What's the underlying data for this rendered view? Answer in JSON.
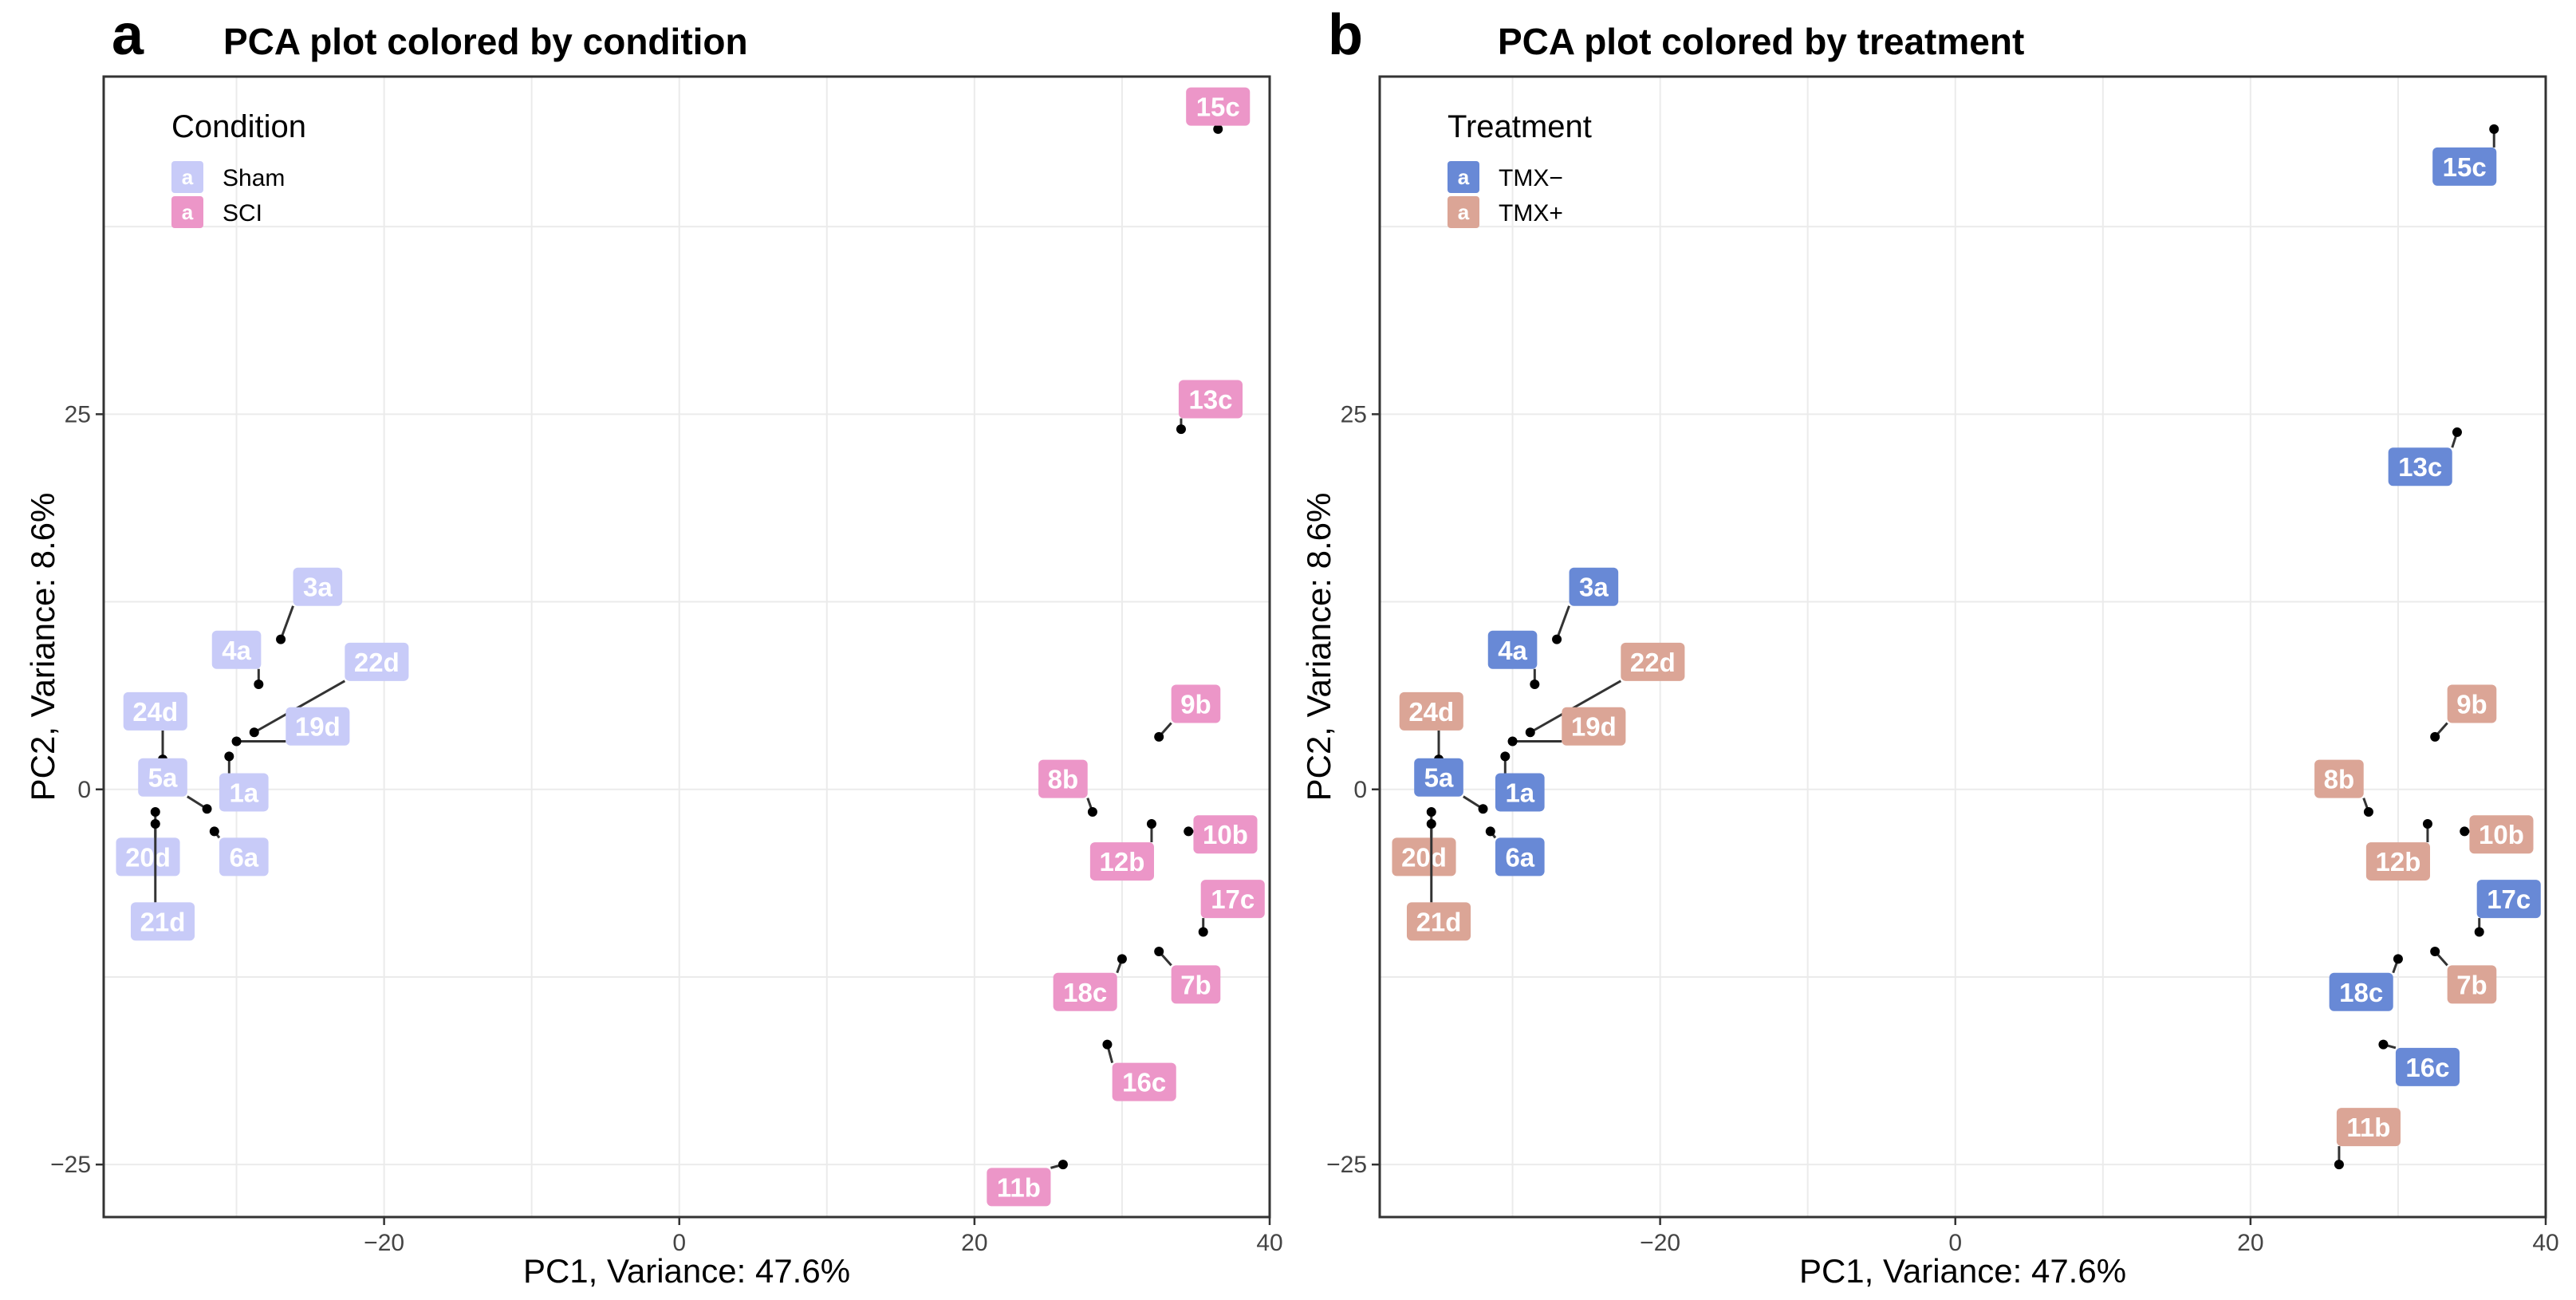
{
  "colors": {
    "sham": "#c8cbf8",
    "sci": "#ec96c8",
    "tmx_minus": "#6889d6",
    "tmx_plus": "#dba596",
    "point": "#000000"
  },
  "chart_data": [
    {
      "type": "scatter",
      "panel_letter": "a",
      "title": "PCA plot colored by condition",
      "xlabel": "PC1, Variance: 47.6%",
      "ylabel": "PC2, Variance: 8.6%",
      "xlim": [
        -39,
        40
      ],
      "ylim": [
        -28.5,
        47.5
      ],
      "xticks": [
        -20,
        0,
        20,
        40
      ],
      "xtick_labels": [
        "−20",
        "0",
        "20",
        "40"
      ],
      "yticks": [
        -25,
        0,
        25
      ],
      "ytick_labels": [
        "−25",
        "0",
        "25"
      ],
      "grid": true,
      "legend": {
        "title": "Condition",
        "position": "top-left",
        "key_glyph": "a",
        "entries": [
          {
            "label": "Sham",
            "color": "#c8cbf8"
          },
          {
            "label": "SCI",
            "color": "#ec96c8"
          }
        ]
      },
      "points": [
        {
          "label": "15c",
          "x": 36.5,
          "y": 44.0,
          "lx": 36.5,
          "ly": 45.5,
          "group": "SCI"
        },
        {
          "label": "13c",
          "x": 34.0,
          "y": 24.0,
          "lx": 36.0,
          "ly": 26.0,
          "group": "SCI"
        },
        {
          "label": "3a",
          "x": -27.0,
          "y": 10.0,
          "lx": -24.5,
          "ly": 13.5,
          "group": "Sham"
        },
        {
          "label": "4a",
          "x": -28.5,
          "y": 7.0,
          "lx": -30.0,
          "ly": 9.3,
          "group": "Sham"
        },
        {
          "label": "22d",
          "x": -28.8,
          "y": 3.8,
          "lx": -20.5,
          "ly": 8.5,
          "group": "Sham"
        },
        {
          "label": "19d",
          "x": -30.0,
          "y": 3.2,
          "lx": -24.5,
          "ly": 4.2,
          "group": "Sham"
        },
        {
          "label": "24d",
          "x": -35.0,
          "y": 2.0,
          "lx": -35.5,
          "ly": 5.2,
          "group": "Sham"
        },
        {
          "label": "1a",
          "x": -30.5,
          "y": 2.2,
          "lx": -29.5,
          "ly": -0.2,
          "group": "Sham"
        },
        {
          "label": "5a",
          "x": -32.0,
          "y": -1.3,
          "lx": -35.0,
          "ly": 0.8,
          "group": "Sham"
        },
        {
          "label": "6a",
          "x": -31.5,
          "y": -2.8,
          "lx": -29.5,
          "ly": -4.5,
          "group": "Sham"
        },
        {
          "label": "20d",
          "x": -35.5,
          "y": -1.5,
          "lx": -36.0,
          "ly": -4.5,
          "group": "Sham"
        },
        {
          "label": "21d",
          "x": -35.5,
          "y": -2.3,
          "lx": -35.0,
          "ly": -8.8,
          "group": "Sham"
        },
        {
          "label": "9b",
          "x": 32.5,
          "y": 3.5,
          "lx": 35.0,
          "ly": 5.7,
          "group": "SCI"
        },
        {
          "label": "8b",
          "x": 28.0,
          "y": -1.5,
          "lx": 26.0,
          "ly": 0.7,
          "group": "SCI"
        },
        {
          "label": "10b",
          "x": 34.5,
          "y": -2.8,
          "lx": 37.0,
          "ly": -3.0,
          "group": "SCI"
        },
        {
          "label": "12b",
          "x": 32.0,
          "y": -2.3,
          "lx": 30.0,
          "ly": -4.8,
          "group": "SCI"
        },
        {
          "label": "17c",
          "x": 35.5,
          "y": -9.5,
          "lx": 37.5,
          "ly": -7.3,
          "group": "SCI"
        },
        {
          "label": "7b",
          "x": 32.5,
          "y": -10.8,
          "lx": 35.0,
          "ly": -13.0,
          "group": "SCI"
        },
        {
          "label": "18c",
          "x": 30.0,
          "y": -11.3,
          "lx": 27.5,
          "ly": -13.5,
          "group": "SCI"
        },
        {
          "label": "16c",
          "x": 29.0,
          "y": -17.0,
          "lx": 31.5,
          "ly": -19.5,
          "group": "SCI"
        },
        {
          "label": "11b",
          "x": 26.0,
          "y": -25.0,
          "lx": 23.0,
          "ly": -26.5,
          "group": "SCI"
        }
      ]
    },
    {
      "type": "scatter",
      "panel_letter": "b",
      "title": "PCA plot colored by treatment",
      "xlabel": "PC1, Variance: 47.6%",
      "ylabel": "PC2, Variance: 8.6%",
      "xlim": [
        -39,
        40
      ],
      "ylim": [
        -28.5,
        47.5
      ],
      "xticks": [
        -20,
        0,
        20,
        40
      ],
      "xtick_labels": [
        "−20",
        "0",
        "20",
        "40"
      ],
      "yticks": [
        -25,
        0,
        25
      ],
      "ytick_labels": [
        "−25",
        "0",
        "25"
      ],
      "grid": true,
      "legend": {
        "title": "Treatment",
        "position": "top-left",
        "key_glyph": "a",
        "entries": [
          {
            "label": "TMX−",
            "color": "#6889d6"
          },
          {
            "label": "TMX+",
            "color": "#dba596"
          }
        ]
      },
      "points": [
        {
          "label": "15c",
          "x": 36.5,
          "y": 44.0,
          "lx": 34.5,
          "ly": 41.5,
          "group": "TMX−"
        },
        {
          "label": "13c",
          "x": 34.0,
          "y": 23.8,
          "lx": 31.5,
          "ly": 21.5,
          "group": "TMX−"
        },
        {
          "label": "3a",
          "x": -27.0,
          "y": 10.0,
          "lx": -24.5,
          "ly": 13.5,
          "group": "TMX−"
        },
        {
          "label": "4a",
          "x": -28.5,
          "y": 7.0,
          "lx": -30.0,
          "ly": 9.3,
          "group": "TMX−"
        },
        {
          "label": "22d",
          "x": -28.8,
          "y": 3.8,
          "lx": -20.5,
          "ly": 8.5,
          "group": "TMX+"
        },
        {
          "label": "19d",
          "x": -30.0,
          "y": 3.2,
          "lx": -24.5,
          "ly": 4.2,
          "group": "TMX+"
        },
        {
          "label": "24d",
          "x": -35.0,
          "y": 2.0,
          "lx": -35.5,
          "ly": 5.2,
          "group": "TMX+"
        },
        {
          "label": "1a",
          "x": -30.5,
          "y": 2.2,
          "lx": -29.5,
          "ly": -0.2,
          "group": "TMX−"
        },
        {
          "label": "5a",
          "x": -32.0,
          "y": -1.3,
          "lx": -35.0,
          "ly": 0.8,
          "group": "TMX−"
        },
        {
          "label": "6a",
          "x": -31.5,
          "y": -2.8,
          "lx": -29.5,
          "ly": -4.5,
          "group": "TMX−"
        },
        {
          "label": "20d",
          "x": -35.5,
          "y": -1.5,
          "lx": -36.0,
          "ly": -4.5,
          "group": "TMX+"
        },
        {
          "label": "21d",
          "x": -35.5,
          "y": -2.3,
          "lx": -35.0,
          "ly": -8.8,
          "group": "TMX+"
        },
        {
          "label": "9b",
          "x": 32.5,
          "y": 3.5,
          "lx": 35.0,
          "ly": 5.7,
          "group": "TMX+"
        },
        {
          "label": "8b",
          "x": 28.0,
          "y": -1.5,
          "lx": 26.0,
          "ly": 0.7,
          "group": "TMX+"
        },
        {
          "label": "10b",
          "x": 34.5,
          "y": -2.8,
          "lx": 37.0,
          "ly": -3.0,
          "group": "TMX+"
        },
        {
          "label": "12b",
          "x": 32.0,
          "y": -2.3,
          "lx": 30.0,
          "ly": -4.8,
          "group": "TMX+"
        },
        {
          "label": "17c",
          "x": 35.5,
          "y": -9.5,
          "lx": 37.5,
          "ly": -7.3,
          "group": "TMX−"
        },
        {
          "label": "7b",
          "x": 32.5,
          "y": -10.8,
          "lx": 35.0,
          "ly": -13.0,
          "group": "TMX+"
        },
        {
          "label": "18c",
          "x": 30.0,
          "y": -11.3,
          "lx": 27.5,
          "ly": -13.5,
          "group": "TMX−"
        },
        {
          "label": "16c",
          "x": 29.0,
          "y": -17.0,
          "lx": 32.0,
          "ly": -18.5,
          "group": "TMX−"
        },
        {
          "label": "11b",
          "x": 26.0,
          "y": -25.0,
          "lx": 28.0,
          "ly": -22.5,
          "group": "TMX+"
        }
      ]
    }
  ]
}
